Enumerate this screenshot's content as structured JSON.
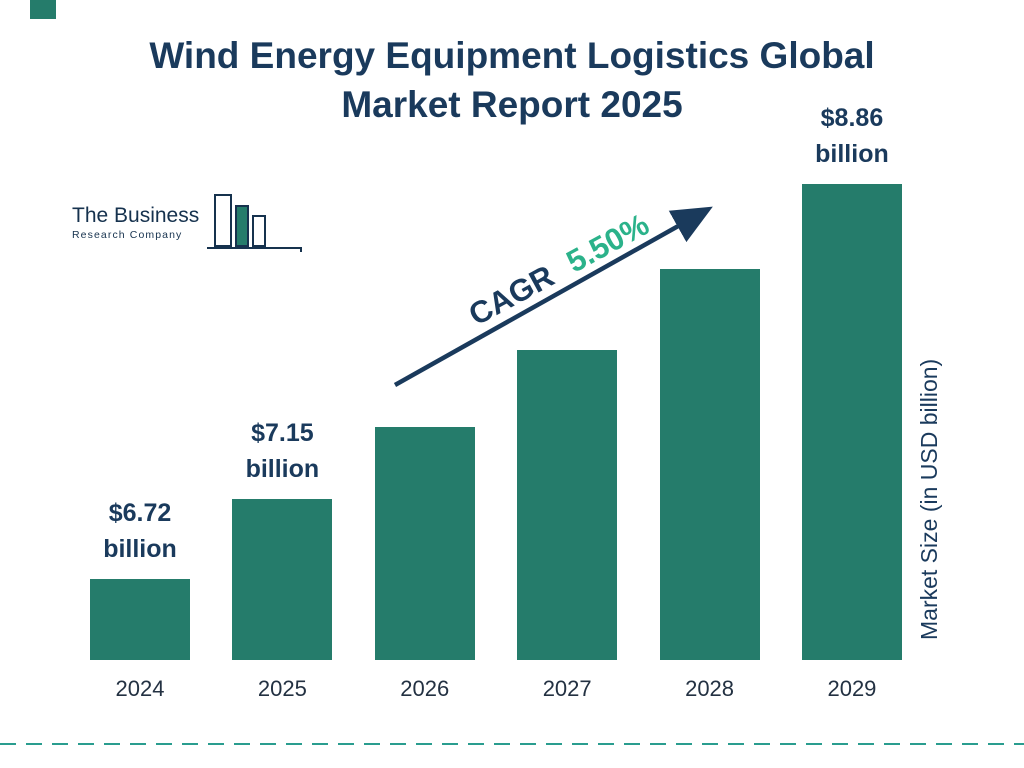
{
  "title": "Wind Energy Equipment Logistics Global Market Report 2025",
  "logo": {
    "name_line1": "The Business",
    "name_line2": "Research Company"
  },
  "cagr": {
    "label": "CAGR",
    "value": "5.50%"
  },
  "y_axis_label": "Market Size (in USD billion)",
  "chart_data": {
    "type": "bar",
    "title": "Wind Energy Equipment Logistics Global Market Report 2025",
    "categories": [
      "2024",
      "2025",
      "2026",
      "2027",
      "2028",
      "2029"
    ],
    "values": [
      6.72,
      7.15,
      7.54,
      7.96,
      8.4,
      8.86
    ],
    "ylabel": "Market Size (in USD billion)",
    "ylim": [
      6.28,
      8.88
    ],
    "grid": false,
    "legend": "none",
    "bar_color": "#257c6b",
    "cagr": "5.50%",
    "annotations": [
      {
        "category": "2024",
        "amount": "$6.72",
        "unit": "billion"
      },
      {
        "category": "2025",
        "amount": "$7.15",
        "unit": "billion"
      },
      {
        "category": "2029",
        "amount": "$8.86",
        "unit": "billion"
      }
    ]
  },
  "colors": {
    "navy": "#1a3a5c",
    "teal": "#257c6b",
    "cagr_green": "#2bb28a",
    "dashed_line": "#2a9d8f"
  }
}
